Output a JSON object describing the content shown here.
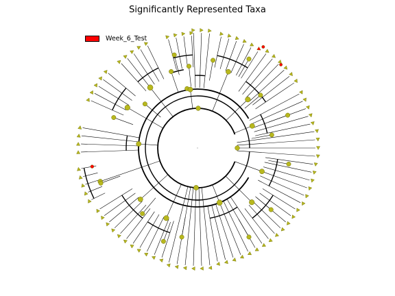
{
  "title": "Significantly Represented Taxa",
  "legend": [
    {
      "label": "Week_6_Test",
      "color": "#ff0000"
    }
  ],
  "colors": {
    "node_fill": "#b8b81e",
    "node_stroke": "#6b6b00",
    "highlight": "#ff0000",
    "edge": "#000000"
  }
}
